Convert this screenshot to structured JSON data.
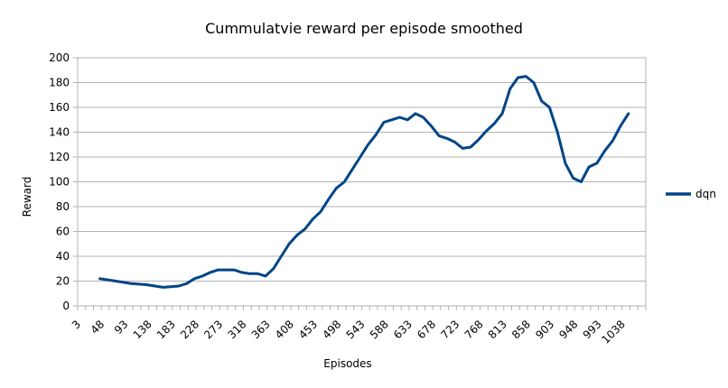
{
  "chart_data": {
    "type": "line",
    "title": "Cummulatvie reward per episode smoothed",
    "xlabel": "Episodes",
    "ylabel": "Reward",
    "ylim": [
      0,
      200
    ],
    "y_ticks": [
      0,
      20,
      40,
      60,
      80,
      100,
      120,
      140,
      160,
      180,
      200
    ],
    "x_ticks": [
      3,
      48,
      93,
      138,
      183,
      228,
      273,
      318,
      363,
      408,
      453,
      498,
      543,
      588,
      633,
      678,
      723,
      768,
      813,
      858,
      903,
      948,
      993,
      1038
    ],
    "grid": true,
    "legend_position": "right",
    "colors": {
      "series": "#004586",
      "grid": "#b3b3b3"
    },
    "series": [
      {
        "name": "dqn",
        "x": [
          45,
          60,
          75,
          90,
          105,
          120,
          135,
          150,
          165,
          180,
          195,
          210,
          225,
          240,
          255,
          270,
          285,
          300,
          315,
          330,
          345,
          360,
          375,
          390,
          405,
          420,
          435,
          450,
          465,
          480,
          495,
          510,
          525,
          540,
          555,
          570,
          585,
          600,
          615,
          630,
          645,
          660,
          675,
          690,
          705,
          720,
          735,
          750,
          765,
          780,
          795,
          810,
          825,
          840,
          855,
          870,
          885,
          900,
          915,
          930,
          945,
          960,
          975,
          990,
          1005,
          1020,
          1035,
          1050
        ],
        "values": [
          22,
          21,
          20,
          19,
          18,
          17.5,
          17,
          16,
          15,
          15.5,
          16,
          18,
          22,
          24,
          27,
          29,
          29,
          29,
          27,
          26,
          26,
          24,
          30,
          40,
          50,
          57,
          62,
          70,
          76,
          86,
          95,
          100,
          110,
          120,
          130,
          138,
          148,
          150,
          152,
          150,
          155,
          152,
          145,
          137,
          135,
          132,
          127,
          128,
          134,
          141,
          147,
          155,
          175,
          184,
          185,
          180,
          165,
          160,
          140,
          115,
          103,
          100,
          112,
          115,
          125,
          133,
          145,
          155
        ]
      }
    ]
  }
}
